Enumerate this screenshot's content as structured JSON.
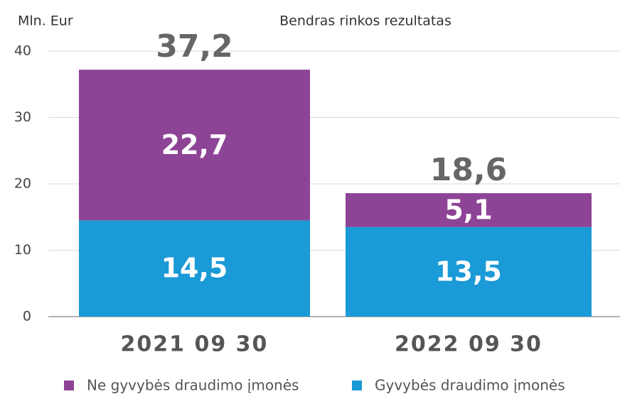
{
  "chart_data": {
    "type": "stacked_bar",
    "title": "Bendras rinkos rezultatas",
    "y_label": "Mln. Eur",
    "categories": [
      "2021 09 30",
      "2022 09 30"
    ],
    "series": [
      {
        "name": "Ne gyvybės draudimo įmonės",
        "color": "#8e4496",
        "values": [
          22.7,
          5.1
        ],
        "value_labels": [
          "22,7",
          "5,1"
        ]
      },
      {
        "name": "Gyvybės draudimo įmonės",
        "color": "#1a9ad6",
        "values": [
          14.5,
          13.5
        ],
        "value_labels": [
          "14,5",
          "13,5"
        ]
      }
    ],
    "totals": {
      "values": [
        37.2,
        18.6
      ],
      "value_labels": [
        "37,2",
        "18,6"
      ]
    },
    "ylim": [
      0,
      40
    ],
    "yticks": [
      0,
      10,
      20,
      30,
      40
    ],
    "grid": true
  }
}
